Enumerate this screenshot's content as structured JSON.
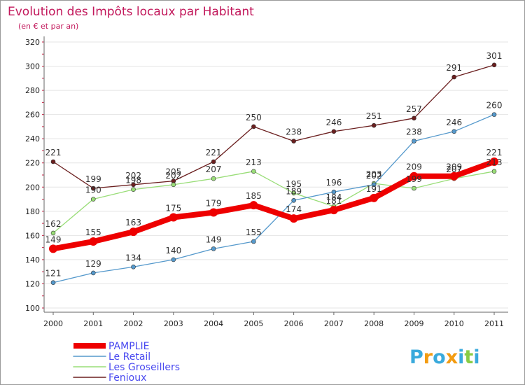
{
  "chart_data": {
    "type": "line",
    "title": "Evolution des Impôts locaux par Habitant",
    "subtitle": "(en € et par an)",
    "xlabel": "",
    "ylabel": "",
    "ylim": [
      100,
      320
    ],
    "yticks": [
      100,
      120,
      140,
      160,
      180,
      200,
      220,
      240,
      260,
      280,
      300,
      320
    ],
    "categories": [
      "2000",
      "2001",
      "2002",
      "2003",
      "2004",
      "2005",
      "2006",
      "2007",
      "2008",
      "2009",
      "2010",
      "2011"
    ],
    "grid": "horizontal",
    "legend_position": "bottom-left",
    "series": [
      {
        "name": "Fenioux",
        "color": "#6b1f1f",
        "values": [
          221,
          199,
          202,
          205,
          221,
          250,
          238,
          246,
          251,
          257,
          291,
          301
        ]
      },
      {
        "name": "Les Groseillers",
        "color": "#99dd77",
        "values": [
          162,
          190,
          198,
          202,
          207,
          213,
          195,
          184,
          203,
          199,
          207,
          213
        ]
      },
      {
        "name": "Le Retail",
        "color": "#5599cc",
        "values": [
          121,
          129,
          134,
          140,
          149,
          155,
          189,
          196,
          202,
          238,
          246,
          260
        ]
      },
      {
        "name": "PAMPLIE",
        "color": "#ee0000",
        "values": [
          149,
          155,
          163,
          175,
          179,
          185,
          174,
          181,
          191,
          209,
          209,
          221
        ]
      }
    ]
  },
  "logo": {
    "text": "Proxiti",
    "letter_colors": [
      "#3aaadc",
      "#f39c12",
      "#3aaadc",
      "#f39c12",
      "#3aaadc",
      "#88cc44",
      "#3aaadc"
    ]
  }
}
